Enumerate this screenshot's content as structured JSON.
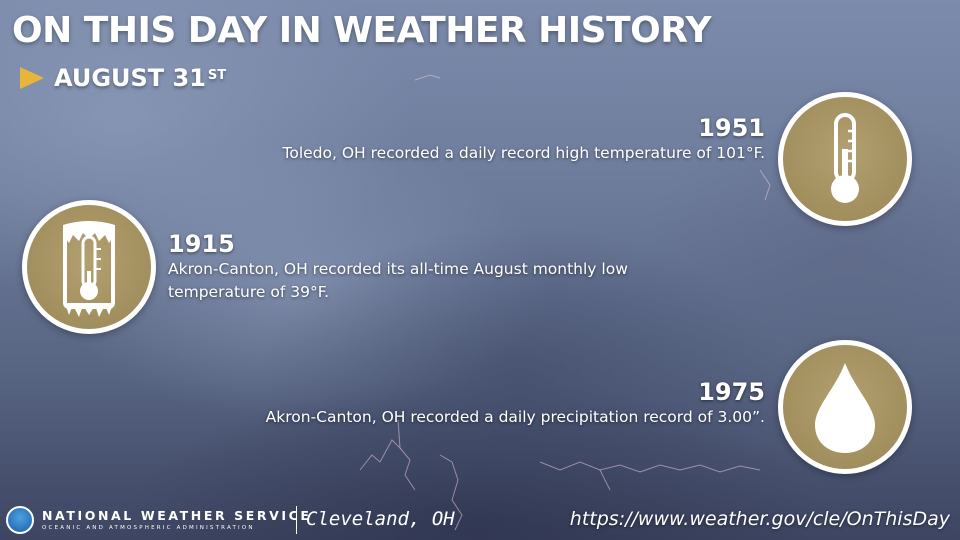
{
  "header": {
    "title": "ON THIS DAY IN WEATHER HISTORY",
    "date_main": "AUGUST 31",
    "date_suffix": "ST"
  },
  "events": [
    {
      "year": "1951",
      "description": "Toledo, OH recorded a daily record high temperature of 101°F.",
      "icon": "thermometer-icon"
    },
    {
      "year": "1915",
      "description": "Akron-Canton, OH recorded its all-time August monthly low temperature of 39°F.",
      "icon": "frozen-thermometer-icon"
    },
    {
      "year": "1975",
      "description": "Akron-Canton, OH recorded a daily precipitation record of 3.00”.",
      "icon": "raindrop-icon"
    }
  ],
  "footer": {
    "agency_name": "NATIONAL WEATHER SERVICE",
    "agency_subtitle": "OCEANIC AND ATMOSPHERIC ADMINISTRATION",
    "office": "Cleveland, OH",
    "url": "https://www.weather.gov/cle/OnThisDay"
  },
  "colors": {
    "accent_gold": "#e8b53a",
    "badge_gold": "#a8955f",
    "text": "#ffffff"
  }
}
